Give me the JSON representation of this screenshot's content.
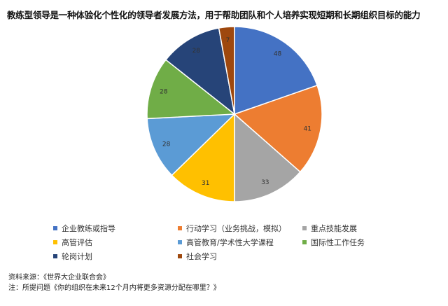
{
  "title": "教练型领导是一种体验化个性化的领导者发展方法，用于帮助团队和个人培养实现短期和长期组织目标的能力",
  "chart_data": {
    "type": "pie",
    "title": "教练型领导是一种体验化个性化的领导者发展方法，用于帮助团队和个人培养实现短期和长期组织目标的能力",
    "categories": [
      "企业教练或指导",
      "行动学习（业务挑战，模拟）",
      "重点技能发展",
      "高管评估",
      "高管教育/学术性大学课程",
      "国际性工作任务",
      "轮岗计划",
      "社会学习"
    ],
    "values": [
      48,
      41,
      33,
      31,
      28,
      28,
      28,
      7
    ],
    "colors": [
      "#4472C4",
      "#ED7D31",
      "#A5A5A5",
      "#FFC000",
      "#5B9BD5",
      "#70AD47",
      "#264478",
      "#9E480E"
    ],
    "legend_position": "bottom"
  },
  "notes": {
    "source": "资料来源：《世界大企业联合会》",
    "note": "注：所提问题《你的组织在未来12个月内将更多资源分配在哪里？》"
  }
}
